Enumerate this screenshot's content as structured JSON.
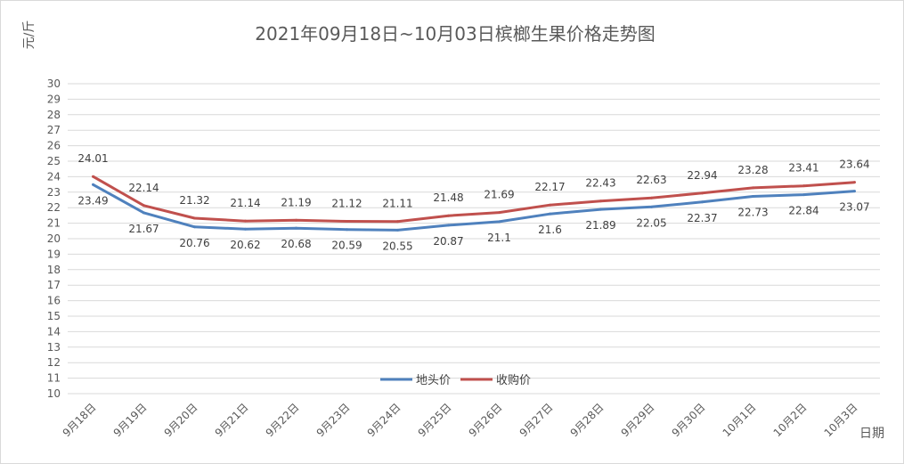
{
  "chart_data": {
    "type": "line",
    "title": "2021年09月18日~10月03日槟榔生果价格走势图",
    "ylabel": "元/斤",
    "xlabel": "日期",
    "ylim": [
      10,
      30
    ],
    "ytick_step": 1,
    "grid": true,
    "legend_position": "bottom-center inside",
    "categories": [
      "9月18日",
      "9月19日",
      "9月20日",
      "9月21日",
      "9月22日",
      "9月23日",
      "9月24日",
      "9月25日",
      "9月26日",
      "9月27日",
      "9月28日",
      "9月29日",
      "9月30日",
      "10月1日",
      "10月2日",
      "10月3日"
    ],
    "series": [
      {
        "name": "地头价",
        "color": "#4f81bd",
        "label_position": "below",
        "values": [
          23.49,
          21.67,
          20.76,
          20.62,
          20.68,
          20.59,
          20.55,
          20.87,
          21.1,
          21.6,
          21.89,
          22.05,
          22.37,
          22.73,
          22.84,
          23.07
        ]
      },
      {
        "name": "收购价",
        "color": "#c0504d",
        "label_position": "above",
        "values": [
          24.01,
          22.14,
          21.32,
          21.14,
          21.19,
          21.12,
          21.11,
          21.48,
          21.69,
          22.17,
          22.43,
          22.63,
          22.94,
          23.28,
          23.41,
          23.64
        ]
      }
    ]
  }
}
